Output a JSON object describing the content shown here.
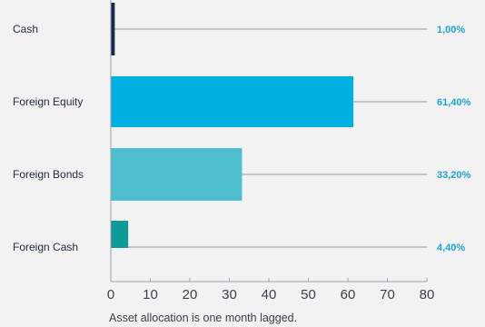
{
  "chart_data": {
    "type": "bar",
    "orientation": "horizontal",
    "categories": [
      "Cash",
      "Foreign Equity",
      "Foreign Bonds",
      "Foreign Cash"
    ],
    "values": [
      1.0,
      61.4,
      33.2,
      4.4
    ],
    "value_labels": [
      "1,00%",
      "61,40%",
      "33,20%",
      "4,40%"
    ],
    "bar_colors": [
      "#1c2a4a",
      "#00b0e0",
      "#4fbfcf",
      "#0f9a98"
    ],
    "line_color": "#8a9bb4",
    "value_label_color": "#1aa5d8",
    "xlim": [
      0,
      80
    ],
    "xticks": [
      0,
      10,
      20,
      30,
      40,
      50,
      60,
      70,
      80
    ],
    "title": "",
    "xlabel": "",
    "ylabel": "",
    "grid": false,
    "caption": "Asset allocation is one month lagged."
  }
}
